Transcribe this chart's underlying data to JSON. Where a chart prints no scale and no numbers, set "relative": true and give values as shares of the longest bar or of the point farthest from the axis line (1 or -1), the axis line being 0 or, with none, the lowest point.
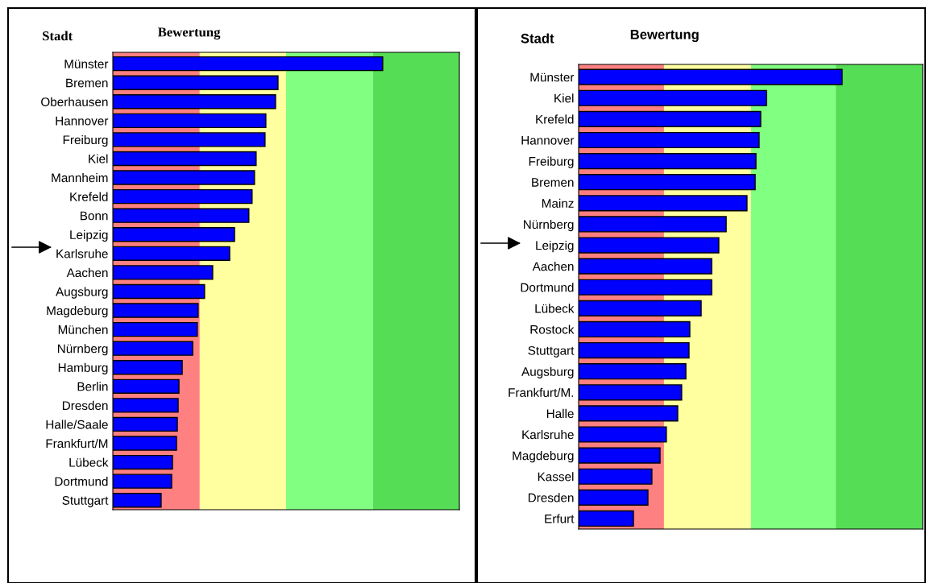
{
  "chart_data": [
    {
      "type": "bar",
      "orientation": "horizontal",
      "relative": true,
      "title": "Bewertung",
      "ylabel": "Stadt",
      "categories": [
        "Münster",
        "Bremen",
        "Oberhausen",
        "Hannover",
        "Freiburg",
        "Kiel",
        "Mannheim",
        "Krefeld",
        "Bonn",
        "Leipzig",
        "Karlsruhe",
        "Aachen",
        "Augsburg",
        "Magdeburg",
        "München",
        "Nürnberg",
        "Hamburg",
        "Berlin",
        "Dresden",
        "Halle/Saale",
        "Frankfurt/M",
        "Lübeck",
        "Dortmund",
        "Stuttgart"
      ],
      "values": [
        1,
        0.612,
        0.603,
        0.567,
        0.564,
        0.531,
        0.525,
        0.516,
        0.504,
        0.451,
        0.433,
        0.37,
        0.34,
        0.316,
        0.313,
        0.296,
        0.257,
        0.245,
        0.242,
        0.239,
        0.236,
        0.221,
        0.218,
        0.179
      ],
      "color": "#0000ff",
      "bands": [
        {
          "axis": "x",
          "from": 0,
          "to": 0.322,
          "color": "#ff8080"
        },
        {
          "axis": "x",
          "from": 0.322,
          "to": 0.642,
          "color": "#ffffa0"
        },
        {
          "axis": "x",
          "from": 0.642,
          "to": 0.964,
          "color": "#80ff80"
        },
        {
          "axis": "x",
          "from": 0.964,
          "to": 1.284,
          "color": "#55dd55"
        }
      ],
      "grid": false,
      "legend": false
    },
    {
      "type": "bar",
      "orientation": "horizontal",
      "relative": true,
      "title": "Bewertung",
      "ylabel": "Stadt",
      "categories": [
        "Münster",
        "Kiel",
        "Krefeld",
        "Hannover",
        "Freiburg",
        "Bremen",
        "Mainz",
        "Nürnberg",
        "Leipzig",
        "Aachen",
        "Dortmund",
        "Lübeck",
        "Rostock",
        "Stuttgart",
        "Augsburg",
        "Frankfurt/M.",
        "Halle",
        "Karlsruhe",
        "Magdeburg",
        "Kassel",
        "Dresden",
        "Erfurt"
      ],
      "values": [
        1,
        0.713,
        0.691,
        0.685,
        0.673,
        0.67,
        0.639,
        0.56,
        0.532,
        0.505,
        0.505,
        0.465,
        0.422,
        0.419,
        0.407,
        0.391,
        0.376,
        0.333,
        0.309,
        0.278,
        0.263,
        0.208
      ],
      "color": "#0000ff",
      "bands": [
        {
          "axis": "x",
          "from": 0,
          "to": 0.324,
          "color": "#ff8080"
        },
        {
          "axis": "x",
          "from": 0.324,
          "to": 0.654,
          "color": "#ffffa0"
        },
        {
          "axis": "x",
          "from": 0.654,
          "to": 0.976,
          "color": "#80ff80"
        },
        {
          "axis": "x",
          "from": 0.976,
          "to": 1.306,
          "color": "#55dd55"
        }
      ],
      "grid": false,
      "legend": false
    }
  ]
}
